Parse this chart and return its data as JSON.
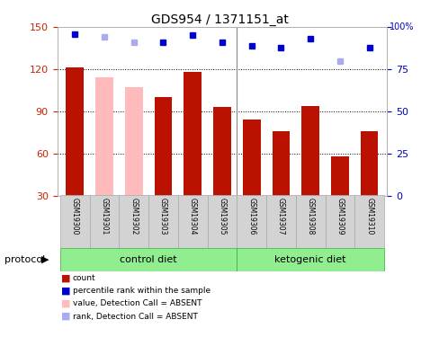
{
  "title": "GDS954 / 1371151_at",
  "samples": [
    "GSM19300",
    "GSM19301",
    "GSM19302",
    "GSM19303",
    "GSM19304",
    "GSM19305",
    "GSM19306",
    "GSM19307",
    "GSM19308",
    "GSM19309",
    "GSM19310"
  ],
  "count_values": [
    121,
    null,
    null,
    100,
    118,
    93,
    84,
    76,
    94,
    58,
    76
  ],
  "count_absent": [
    null,
    114,
    107,
    null,
    null,
    null,
    null,
    null,
    null,
    null,
    null
  ],
  "percentile_values": [
    96,
    null,
    null,
    91,
    95,
    91,
    89,
    88,
    93,
    null,
    88
  ],
  "percentile_absent": [
    null,
    94,
    91,
    null,
    null,
    null,
    null,
    null,
    null,
    80,
    null
  ],
  "ylim_left": [
    30,
    150
  ],
  "ylim_right": [
    0,
    100
  ],
  "yticks_left": [
    30,
    60,
    90,
    120,
    150
  ],
  "yticks_right": [
    0,
    25,
    50,
    75,
    100
  ],
  "bar_color": "#bb1100",
  "bar_absent_color": "#ffbbbb",
  "dot_color": "#0000cc",
  "dot_absent_color": "#aaaaee",
  "grid_color": "#000000",
  "left_tick_color": "#cc2200",
  "right_tick_color": "#0000cc",
  "control_diet_indices": [
    0,
    1,
    2,
    3,
    4,
    5
  ],
  "ketogenic_diet_indices": [
    6,
    7,
    8,
    9,
    10
  ],
  "protocol_label": "protocol",
  "control_label": "control diet",
  "ketogenic_label": "ketogenic diet",
  "background_color": "#ffffff",
  "sample_bg_color": "#d3d3d3",
  "group_bg_color": "#90ee90",
  "legend_items": [
    [
      "#bb1100",
      "count"
    ],
    [
      "#0000cc",
      "percentile rank within the sample"
    ],
    [
      "#ffbbbb",
      "value, Detection Call = ABSENT"
    ],
    [
      "#aaaaee",
      "rank, Detection Call = ABSENT"
    ]
  ]
}
